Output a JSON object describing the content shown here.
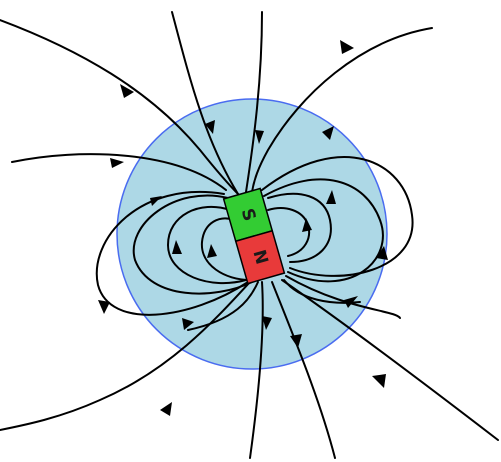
{
  "diagram": {
    "magnet": {
      "south_label": "S",
      "north_label": "N",
      "south_color": "#33cc33",
      "north_color": "#e83a3a"
    },
    "sphere_fill": "#add8e6",
    "sphere_stroke": "#4a6cf0",
    "field_line_color": "#000000"
  }
}
